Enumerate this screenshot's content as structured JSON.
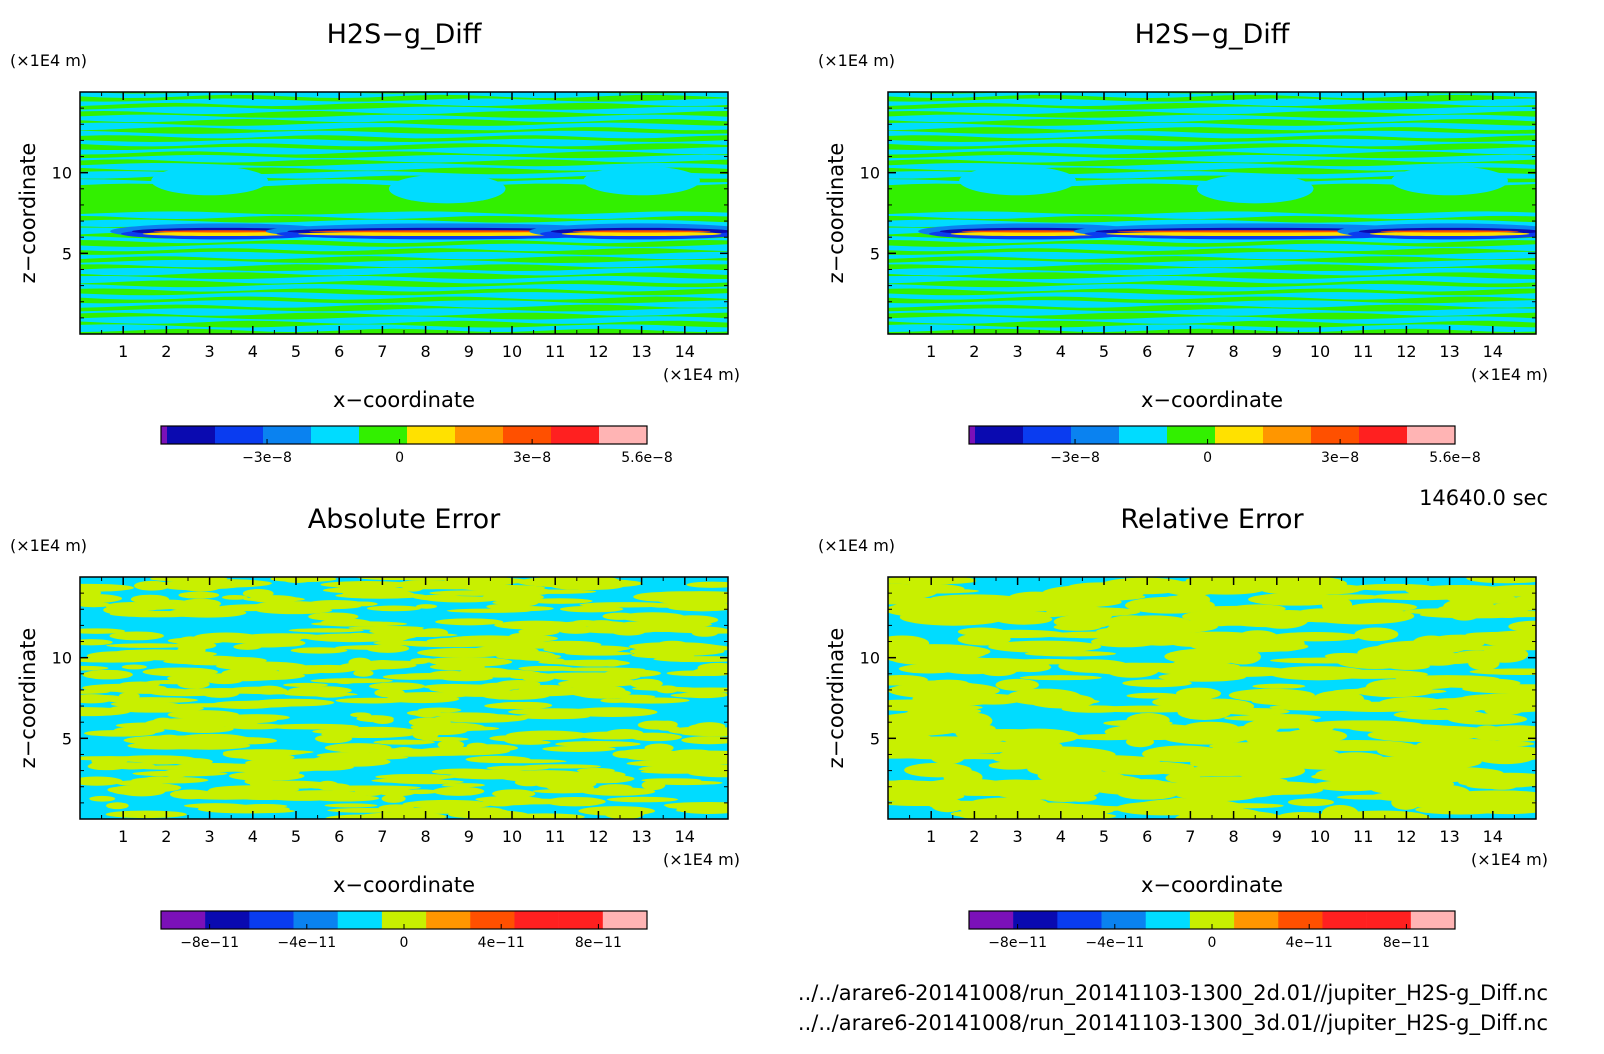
{
  "time_label": "14640.0 sec",
  "files": [
    "../../arare6-20141008/run_20141103-1300_2d.01//jupiter_H2S-g_Diff.nc",
    "../../arare6-20141008/run_20141103-1300_3d.01//jupiter_H2S-g_Diff.nc"
  ],
  "colors": {
    "purple": "#7b10b8",
    "navy": "#0a0ab0",
    "blue": "#0a3cf0",
    "azure": "#0a82f0",
    "cyan": "#00dcff",
    "green": "#32f000",
    "yellowgreen": "#c8f000",
    "yellow": "#ffe100",
    "orange": "#ff9600",
    "redorange": "#ff5000",
    "red": "#ff2020",
    "pink": "#ffb4b4"
  },
  "chart_data": [
    {
      "type": "heatmap",
      "title": "H2S−g_Diff",
      "xlabel": "x−coordinate",
      "ylabel": "z−coordinate",
      "x_unit": "(×1E4 m)",
      "y_unit": "(×1E4 m)",
      "xlim": [
        0,
        15
      ],
      "ylim": [
        0,
        15
      ],
      "x_ticks": [
        "1",
        "2",
        "3",
        "4",
        "5",
        "6",
        "7",
        "8",
        "9",
        "10",
        "11",
        "12",
        "13",
        "14"
      ],
      "y_ticks": [
        "5",
        "10"
      ],
      "pattern": "diff",
      "colorbar": {
        "colors": [
          "#7b10b8",
          "#0a0ab0",
          "#0a3cf0",
          "#0a82f0",
          "#00dcff",
          "#32f000",
          "#ffe100",
          "#ff9600",
          "#ff5000",
          "#ff2020",
          "#ffb4b4"
        ],
        "first_narrow": true,
        "tick_labels": [
          "−3e−8",
          "0",
          "3e−8",
          "5.6e−8"
        ],
        "tick_values": [
          -3e-08,
          0,
          3e-08,
          5.6e-08
        ],
        "range": [
          -5.4e-08,
          5.6e-08
        ]
      }
    },
    {
      "type": "heatmap",
      "title": "H2S−g_Diff",
      "xlabel": "x−coordinate",
      "ylabel": "z−coordinate",
      "x_unit": "(×1E4 m)",
      "y_unit": "(×1E4 m)",
      "xlim": [
        0,
        15
      ],
      "ylim": [
        0,
        15
      ],
      "x_ticks": [
        "1",
        "2",
        "3",
        "4",
        "5",
        "6",
        "7",
        "8",
        "9",
        "10",
        "11",
        "12",
        "13",
        "14"
      ],
      "y_ticks": [
        "5",
        "10"
      ],
      "pattern": "diff",
      "colorbar": {
        "colors": [
          "#7b10b8",
          "#0a0ab0",
          "#0a3cf0",
          "#0a82f0",
          "#00dcff",
          "#32f000",
          "#ffe100",
          "#ff9600",
          "#ff5000",
          "#ff2020",
          "#ffb4b4"
        ],
        "first_narrow": true,
        "tick_labels": [
          "−3e−8",
          "0",
          "3e−8",
          "5.6e−8"
        ],
        "tick_values": [
          -3e-08,
          0,
          3e-08,
          5.6e-08
        ],
        "range": [
          -5.4e-08,
          5.6e-08
        ]
      }
    },
    {
      "type": "heatmap",
      "title": "Absolute Error",
      "xlabel": "x−coordinate",
      "ylabel": "z−coordinate",
      "x_unit": "(×1E4 m)",
      "y_unit": "(×1E4 m)",
      "xlim": [
        0,
        15
      ],
      "ylim": [
        0,
        15
      ],
      "x_ticks": [
        "1",
        "2",
        "3",
        "4",
        "5",
        "6",
        "7",
        "8",
        "9",
        "10",
        "11",
        "12",
        "13",
        "14"
      ],
      "y_ticks": [
        "5",
        "10"
      ],
      "pattern": "abs",
      "colorbar": {
        "colors": [
          "#7b10b8",
          "#0a0ab0",
          "#0a3cf0",
          "#0a82f0",
          "#00dcff",
          "#c8f000",
          "#ff9600",
          "#ff5000",
          "#ff2020",
          "#ff2020",
          "#ffb4b4"
        ],
        "first_narrow": false,
        "tick_labels": [
          "−8e−11",
          "−4e−11",
          "0",
          "4e−11",
          "8e−11"
        ],
        "tick_values": [
          -8e-11,
          -4e-11,
          0,
          4e-11,
          8e-11
        ],
        "range": [
          -1e-10,
          1e-10
        ]
      }
    },
    {
      "type": "heatmap",
      "title": "Relative Error",
      "xlabel": "x−coordinate",
      "ylabel": "z−coordinate",
      "x_unit": "(×1E4 m)",
      "y_unit": "(×1E4 m)",
      "xlim": [
        0,
        15
      ],
      "ylim": [
        0,
        15
      ],
      "x_ticks": [
        "1",
        "2",
        "3",
        "4",
        "5",
        "6",
        "7",
        "8",
        "9",
        "10",
        "11",
        "12",
        "13",
        "14"
      ],
      "y_ticks": [
        "5",
        "10"
      ],
      "pattern": "rel",
      "colorbar": {
        "colors": [
          "#7b10b8",
          "#0a0ab0",
          "#0a3cf0",
          "#0a82f0",
          "#00dcff",
          "#c8f000",
          "#ff9600",
          "#ff5000",
          "#ff2020",
          "#ff2020",
          "#ffb4b4"
        ],
        "first_narrow": false,
        "tick_labels": [
          "−8e−11",
          "−4e−11",
          "0",
          "4e−11",
          "8e−11"
        ],
        "tick_values": [
          -8e-11,
          -4e-11,
          0,
          4e-11,
          8e-11
        ],
        "range": [
          -1e-10,
          1e-10
        ]
      }
    }
  ]
}
